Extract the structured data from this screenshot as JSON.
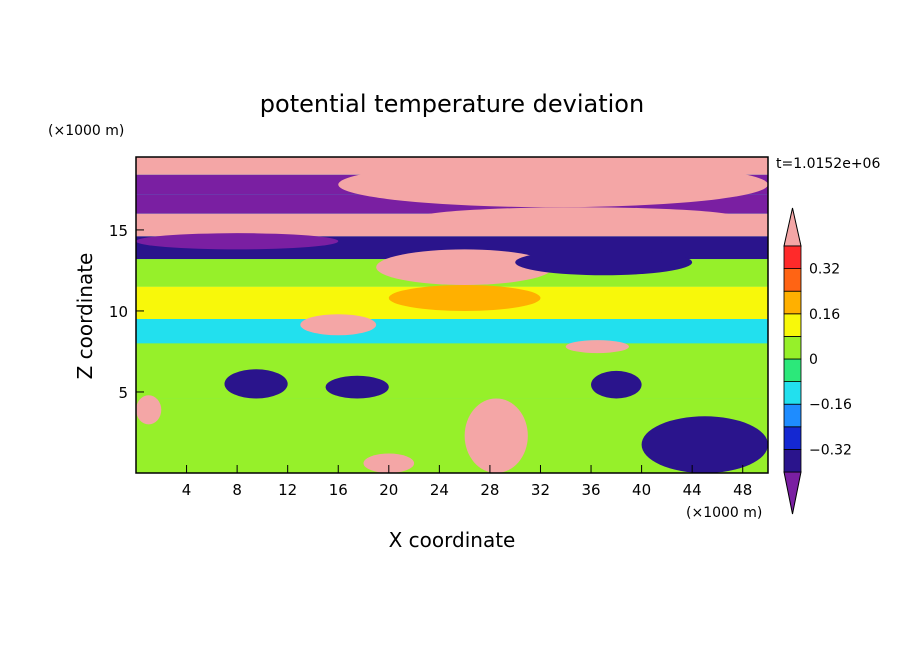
{
  "chart_data": {
    "type": "heatmap",
    "title": "potential temperature deviation",
    "xlabel": "X coordinate",
    "ylabel": "Z coordinate",
    "x_units": "(×1000 m)",
    "y_units": "(×1000 m)",
    "time_label": "t=1.0152e+06",
    "xlim": [
      0,
      50
    ],
    "ylim": [
      0,
      19.5
    ],
    "x_ticks": [
      4,
      8,
      12,
      16,
      20,
      24,
      28,
      32,
      36,
      40,
      44,
      48
    ],
    "y_ticks": [
      5,
      10,
      15
    ],
    "colorbar": {
      "levels": [
        -0.4,
        -0.32,
        -0.24,
        -0.16,
        -0.08,
        0,
        0.08,
        0.16,
        0.24,
        0.32,
        0.4
      ],
      "tick_labels": [
        "0.32",
        "0.16",
        "0",
        "−0.16",
        "−0.32"
      ],
      "tick_values": [
        0.32,
        0.16,
        0,
        -0.16,
        -0.32
      ],
      "colors": [
        "#7a1fa2",
        "#2a148c",
        "#1428d2",
        "#1e8cff",
        "#22e0ee",
        "#2ce87a",
        "#96f02a",
        "#f8f80a",
        "#ffb000",
        "#ff6414",
        "#ff2a2a",
        "#f4a6a6"
      ],
      "extend": "both"
    },
    "bands": [
      {
        "z": [
          18.4,
          19.5
        ],
        "value": 0.5
      },
      {
        "z": [
          17.2,
          18.4
        ],
        "value": -0.5
      },
      {
        "z": [
          16.0,
          17.2
        ],
        "value": -0.45
      },
      {
        "z": [
          14.6,
          16.0
        ],
        "value": 0.5
      },
      {
        "z": [
          13.2,
          14.6
        ],
        "value": -0.35
      },
      {
        "z": [
          11.5,
          13.2
        ],
        "value": 0.05
      },
      {
        "z": [
          9.5,
          11.5
        ],
        "value": 0.12
      },
      {
        "z": [
          8.0,
          9.5
        ],
        "value": -0.1
      },
      {
        "z": [
          4.6,
          8.0
        ],
        "value": 0.02
      },
      {
        "z": [
          0,
          4.6
        ],
        "value": 0.05
      }
    ],
    "features": [
      {
        "x": [
          0,
          16
        ],
        "z": [
          13.8,
          14.8
        ],
        "value": -0.5
      },
      {
        "x": [
          16,
          50
        ],
        "z": [
          16.4,
          19.2
        ],
        "value": 0.5
      },
      {
        "x": [
          22,
          48
        ],
        "z": [
          15.0,
          16.4
        ],
        "value": 0.5
      },
      {
        "x": [
          19,
          33
        ],
        "z": [
          11.6,
          13.8
        ],
        "value": 0.5
      },
      {
        "x": [
          20,
          32
        ],
        "z": [
          10.0,
          11.6
        ],
        "value": 0.2
      },
      {
        "x": [
          30,
          44
        ],
        "z": [
          12.2,
          13.8
        ],
        "value": -0.35
      },
      {
        "x": [
          13,
          19
        ],
        "z": [
          8.5,
          9.8
        ],
        "value": 0.5
      },
      {
        "x": [
          34,
          39
        ],
        "z": [
          7.4,
          8.2
        ],
        "value": 0.5
      },
      {
        "x": [
          7,
          12
        ],
        "z": [
          4.6,
          6.4
        ],
        "value": -0.4
      },
      {
        "x": [
          15,
          20
        ],
        "z": [
          4.6,
          6.0
        ],
        "value": -0.35
      },
      {
        "x": [
          36,
          40
        ],
        "z": [
          4.6,
          6.3
        ],
        "value": -0.4
      },
      {
        "x": [
          26,
          31
        ],
        "z": [
          0,
          4.6
        ],
        "value": 0.5
      },
      {
        "x": [
          40,
          50
        ],
        "z": [
          0,
          3.5
        ],
        "value": -0.4
      },
      {
        "x": [
          0,
          2
        ],
        "z": [
          3.0,
          4.8
        ],
        "value": 0.5
      },
      {
        "x": [
          18,
          22
        ],
        "z": [
          0,
          1.2
        ],
        "value": 0.5
      }
    ]
  }
}
